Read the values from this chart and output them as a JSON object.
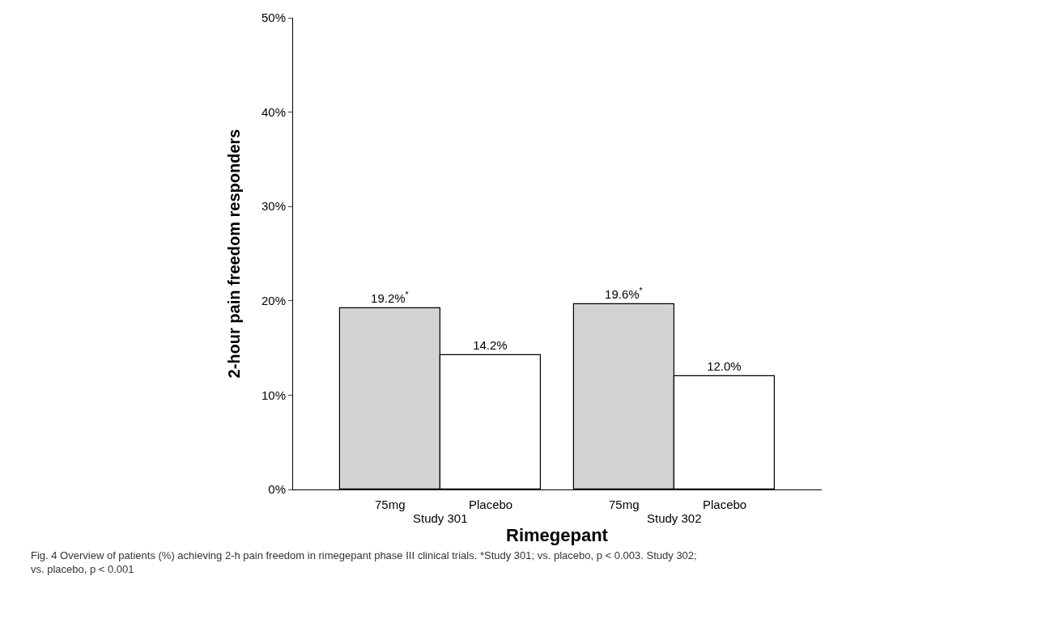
{
  "chart_data": {
    "type": "bar",
    "categories": [
      "Study 301",
      "Study 302"
    ],
    "series": [
      {
        "name": "75mg",
        "color": "#d3d3d3",
        "values": [
          19.2,
          19.6
        ],
        "value_labels": [
          "19.2%$^{*}$",
          "19.6%$^{*}$"
        ]
      },
      {
        "name": "Placebo",
        "color": "#ffffff",
        "values": [
          14.2,
          12.0
        ],
        "value_labels": [
          "14.2%",
          "12.0%"
        ]
      }
    ],
    "ylabel": "2-hour pain freedom responders",
    "xlabel": "Rimegepant",
    "ylim": [
      0,
      50
    ],
    "yticks": [
      {
        "value": 0,
        "label": "0%"
      },
      {
        "value": 10,
        "label": "10%"
      },
      {
        "value": 20,
        "label": "20%"
      },
      {
        "value": 30,
        "label": "30%"
      },
      {
        "value": 40,
        "label": "40%"
      },
      {
        "value": 50,
        "label": "50%"
      }
    ],
    "legend": false,
    "annotations": [
      "Fig. 4 Overview of patients (%) achieving 2-h pain freedom in rimegepant phase III clinical trials. *Study 301; vs. placebo, p < 0.003. Study 302; vs. placebo, p < 0.001"
    ]
  }
}
